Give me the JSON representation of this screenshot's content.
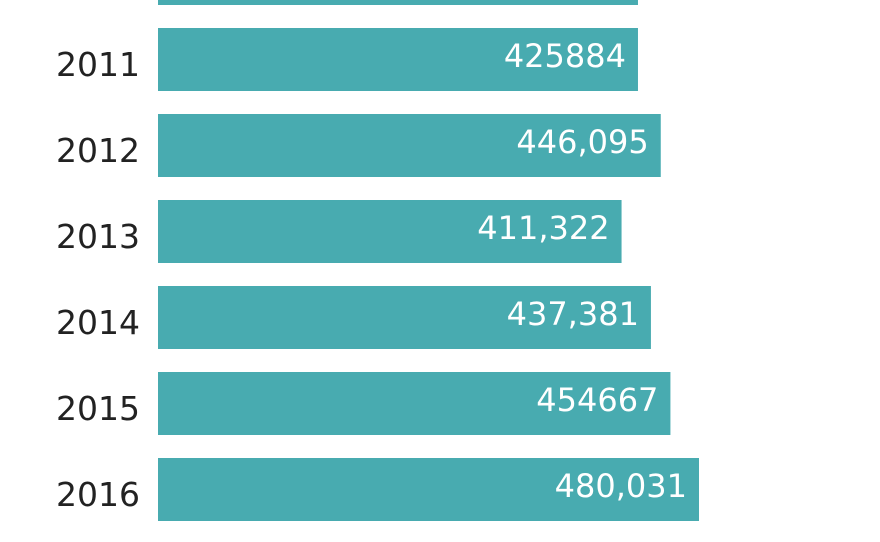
{
  "chart_data": {
    "type": "bar",
    "orientation": "horizontal",
    "bar_color": "#48abb0",
    "categories": [
      "2011",
      "2012",
      "2013",
      "2014",
      "2015",
      "2016"
    ],
    "values": [
      425884,
      446095,
      411322,
      437381,
      454667,
      480031
    ],
    "value_labels": [
      "425884",
      "446,095",
      "411,322",
      "437,381",
      "454667",
      "480,031"
    ],
    "partial_top_bar_value": 425884,
    "xlim": [
      0,
      480031
    ]
  }
}
